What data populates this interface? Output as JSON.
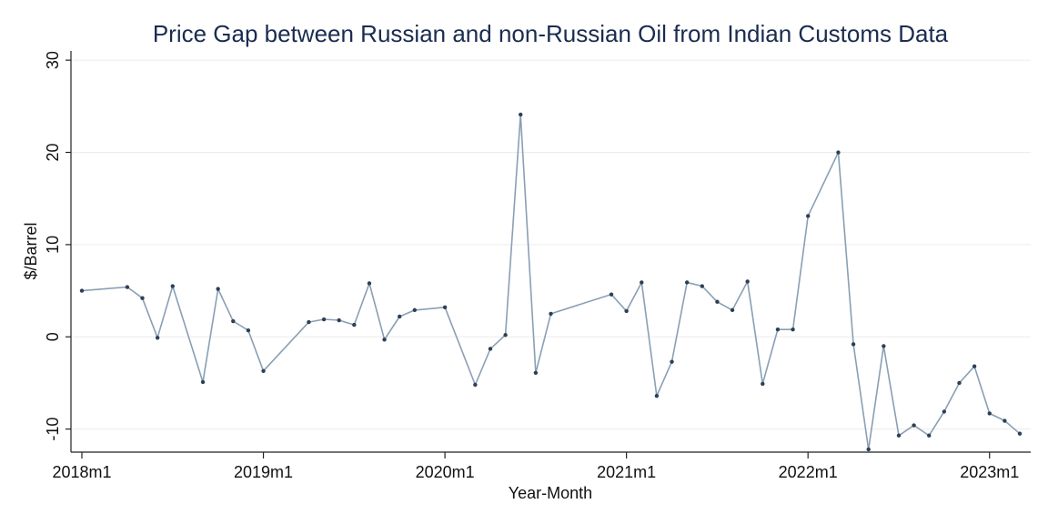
{
  "chart_data": {
    "type": "line",
    "title": "Price Gap between Russian and non-Russian Oil from Indian Customs Data",
    "xlabel": "Year-Month",
    "ylabel": "$/Barrel",
    "ylim": [
      -12.5,
      31
    ],
    "yticks": [
      -10,
      0,
      10,
      20,
      30
    ],
    "ytick_labels": [
      "-10",
      "0",
      "10",
      "20",
      "30"
    ],
    "xlim": [
      "2018m1",
      "2023m3"
    ],
    "xtick_labels": [
      "2018m1",
      "2019m1",
      "2020m1",
      "2021m1",
      "2022m1",
      "2023m1"
    ],
    "grid": "horizontal",
    "series": [
      {
        "color": "#8a9fb4",
        "marker_color": "#2e3f55",
        "points": [
          [
            "2018m1",
            5.0
          ],
          [
            "2018m4",
            5.4
          ],
          [
            "2018m5",
            4.2
          ],
          [
            "2018m6",
            -0.1
          ],
          [
            "2018m7",
            5.5
          ],
          [
            "2018m9",
            -4.9
          ],
          [
            "2018m10",
            5.2
          ],
          [
            "2018m11",
            1.7
          ],
          [
            "2018m12",
            0.7
          ],
          [
            "2019m1",
            -3.7
          ],
          [
            "2019m4",
            1.6
          ],
          [
            "2019m5",
            1.9
          ],
          [
            "2019m6",
            1.8
          ],
          [
            "2019m7",
            1.3
          ],
          [
            "2019m8",
            5.8
          ],
          [
            "2019m9",
            -0.3
          ],
          [
            "2019m10",
            2.2
          ],
          [
            "2019m11",
            2.9
          ],
          [
            "2020m1",
            3.2
          ],
          [
            "2020m3",
            -5.2
          ],
          [
            "2020m4",
            -1.3
          ],
          [
            "2020m5",
            0.2
          ],
          [
            "2020m6",
            24.1
          ],
          [
            "2020m7",
            -3.9
          ],
          [
            "2020m8",
            2.5
          ],
          [
            "2020m12",
            4.6
          ],
          [
            "2021m1",
            2.8
          ],
          [
            "2021m2",
            5.9
          ],
          [
            "2021m3",
            -6.4
          ],
          [
            "2021m4",
            -2.7
          ],
          [
            "2021m5",
            5.9
          ],
          [
            "2021m6",
            5.5
          ],
          [
            "2021m7",
            3.8
          ],
          [
            "2021m8",
            2.9
          ],
          [
            "2021m9",
            6.0
          ],
          [
            "2021m10",
            -5.1
          ],
          [
            "2021m11",
            0.8
          ],
          [
            "2021m12",
            0.8
          ],
          [
            "2022m1",
            13.1
          ],
          [
            "2022m3",
            20.0
          ],
          [
            "2022m4",
            -0.8
          ],
          [
            "2022m5",
            -12.2
          ],
          [
            "2022m6",
            -1.0
          ],
          [
            "2022m7",
            -10.7
          ],
          [
            "2022m8",
            -9.6
          ],
          [
            "2022m9",
            -10.7
          ],
          [
            "2022m10",
            -8.1
          ],
          [
            "2022m11",
            -5.0
          ],
          [
            "2022m12",
            -3.2
          ],
          [
            "2023m1",
            -8.3
          ],
          [
            "2023m2",
            -9.1
          ],
          [
            "2023m3",
            -10.5
          ]
        ]
      }
    ]
  }
}
